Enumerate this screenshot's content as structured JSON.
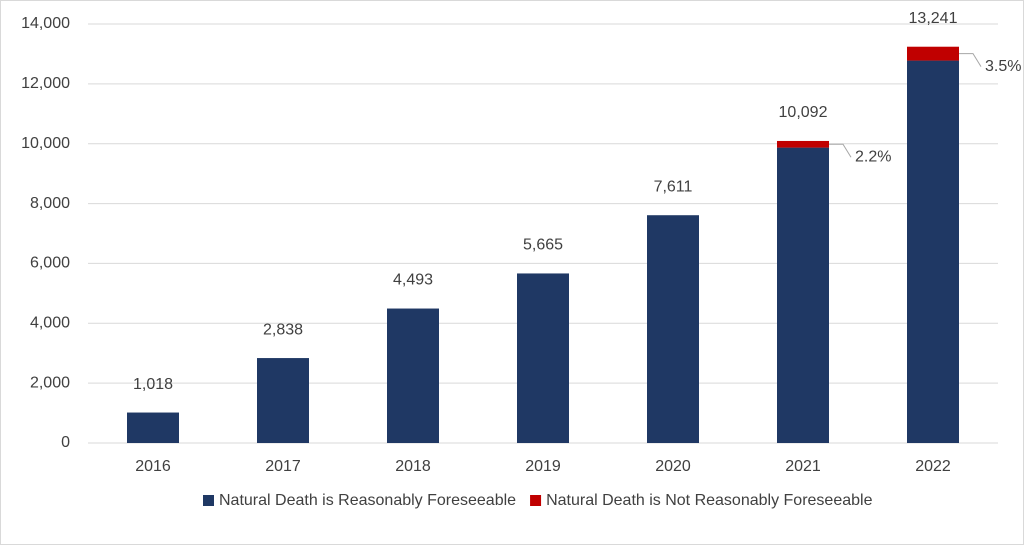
{
  "chart_data": {
    "type": "stacked-bar",
    "categories": [
      "2016",
      "2017",
      "2018",
      "2019",
      "2020",
      "2021",
      "2022"
    ],
    "series": [
      {
        "name": "Natural Death is Reasonably Foreseeable",
        "color": "#1f3864",
        "values": [
          1018,
          2838,
          4493,
          5665,
          7611,
          9870,
          12778
        ]
      },
      {
        "name": "Natural Death is Not Reasonably Foreseeable",
        "color": "#c00000",
        "values": [
          null,
          null,
          null,
          null,
          null,
          222,
          463
        ],
        "value_labels": [
          null,
          null,
          null,
          null,
          null,
          "2.2%",
          "3.5%"
        ]
      }
    ],
    "totals": [
      1018,
      2838,
      4493,
      5665,
      7611,
      10092,
      13241
    ],
    "total_labels": [
      "1,018",
      "2,838",
      "4,493",
      "5,665",
      "7,611",
      "10,092",
      "13,241"
    ],
    "ylim": [
      0,
      14000
    ],
    "yticks": [
      0,
      {
        "value": 2000,
        "label": "2,000"
      },
      {
        "value": 4000,
        "label": "4,000"
      },
      {
        "value": 6000,
        "label": "6,000"
      },
      {
        "value": 8000,
        "label": "8,000"
      },
      {
        "value": 10000,
        "label": "10,000"
      },
      {
        "value": 12000,
        "label": "12,000"
      },
      {
        "value": 14000,
        "label": "14,000"
      }
    ],
    "grid": true,
    "legend": "bottom"
  }
}
